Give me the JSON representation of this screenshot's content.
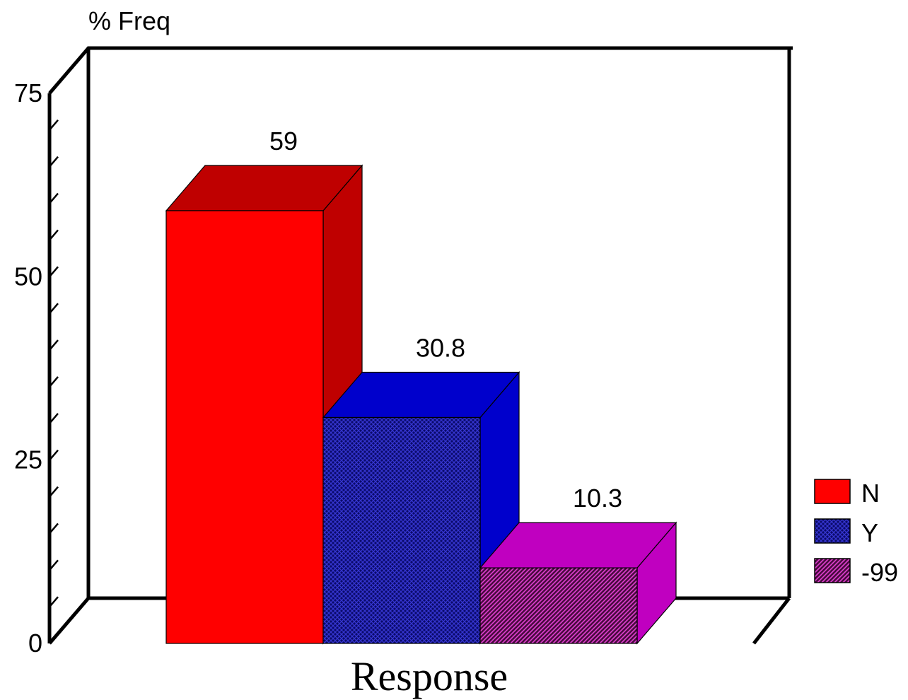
{
  "chart_data": {
    "type": "bar",
    "categories": [
      "N",
      "Y",
      "-99"
    ],
    "values": [
      59,
      30.8,
      10.3
    ],
    "data_labels": [
      "59",
      "30.8",
      "10.3"
    ],
    "ylabel": "% Freq",
    "xlabel": "Response",
    "ylim": [
      0,
      75
    ],
    "yticks": [
      "0",
      "25",
      "50",
      "75"
    ],
    "legend": {
      "position": "right",
      "entries": [
        "N",
        "Y",
        "-99"
      ]
    },
    "colors": {
      "N": {
        "front": "#ff0000",
        "side": "#bf0000",
        "top": "#bf0000",
        "pattern": "solid"
      },
      "Y": {
        "front": "#1a1a7a",
        "side": "#0000cc",
        "top": "#0000cc",
        "pattern": "crosshatch"
      },
      "-99": {
        "front": "#6a1a5a",
        "side": "#c000c0",
        "top": "#c000c0",
        "pattern": "diagonal"
      }
    },
    "grid": false,
    "three_d": true
  }
}
